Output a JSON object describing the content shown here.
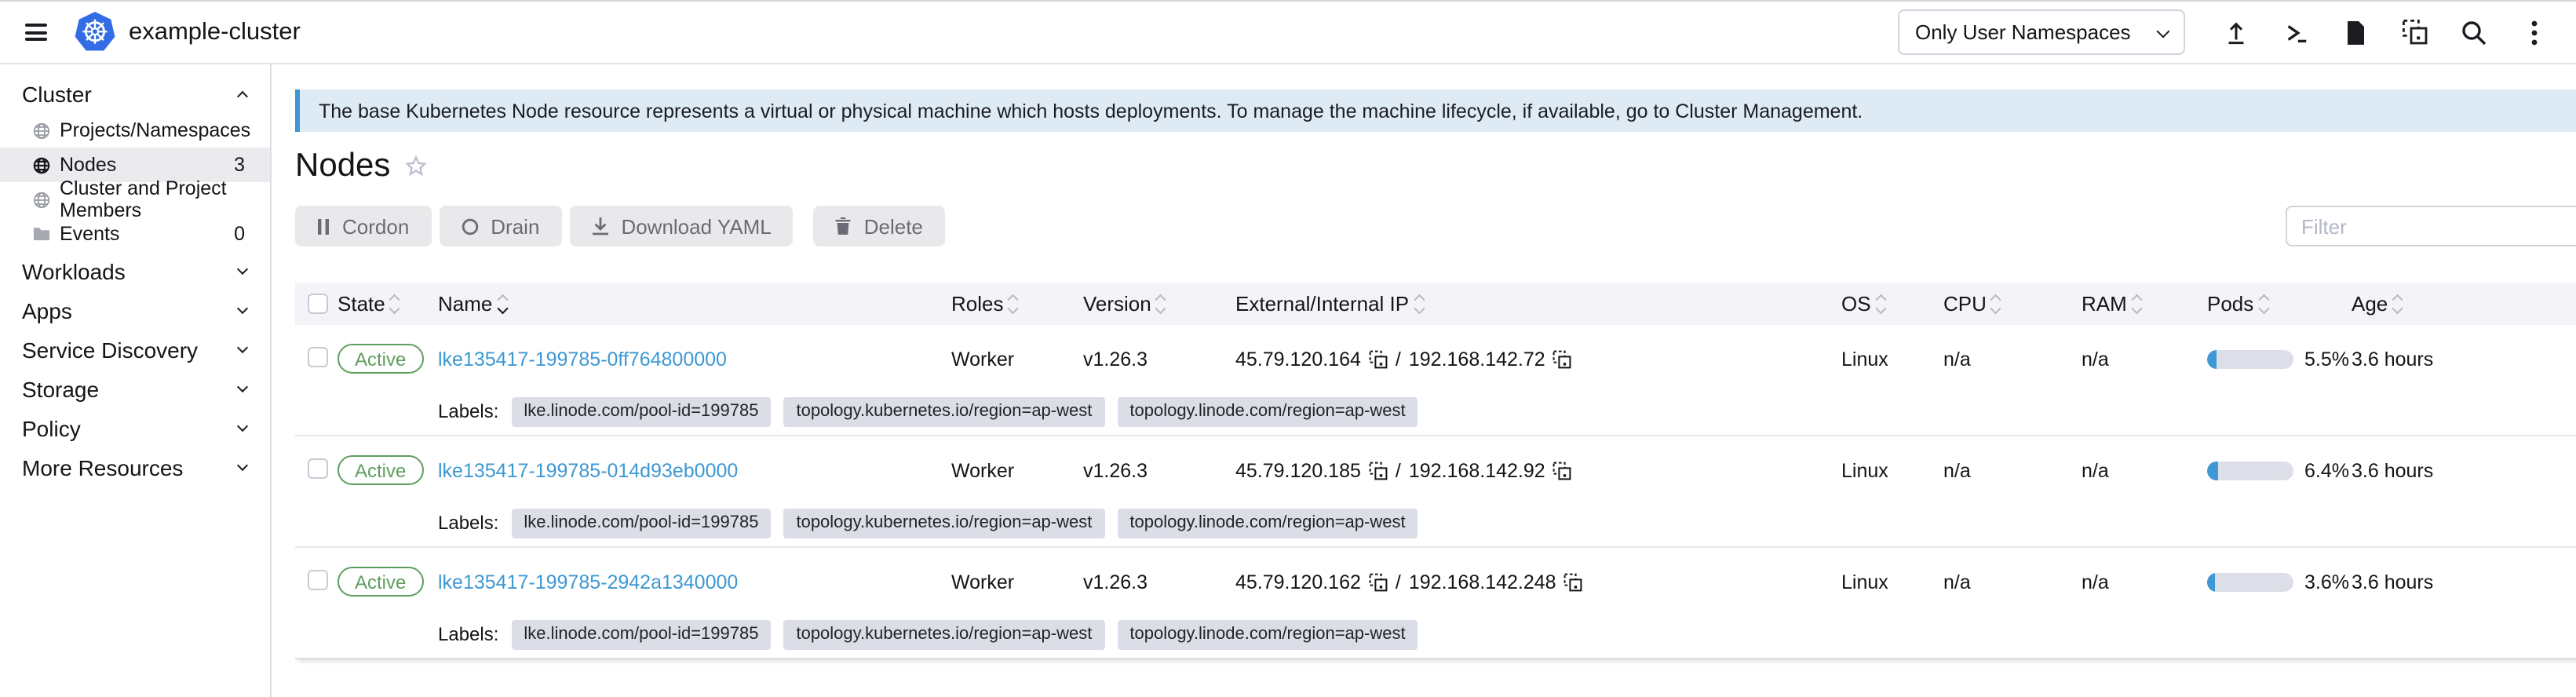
{
  "topbar": {
    "cluster_name": "example-cluster",
    "namespace_dropdown": {
      "value": "Only User Namespaces"
    },
    "icons": {
      "hamburger": "main-menu",
      "upload": "import-yaml",
      "shell": "kubectl-shell",
      "file": "download-kubeconfig",
      "copy": "copy-kubeconfig",
      "search": "resource-search",
      "kebab": "more-options"
    }
  },
  "sidebar": {
    "group_cluster": "Cluster",
    "items": [
      {
        "label": "Projects/Namespaces",
        "icon": "globe"
      },
      {
        "label": "Nodes",
        "icon": "globe",
        "count": "3",
        "selected": true
      },
      {
        "label": "Cluster and Project Members",
        "icon": "globe"
      },
      {
        "label": "Events",
        "icon": "folder",
        "count": "0"
      }
    ],
    "groups": [
      {
        "label": "Workloads"
      },
      {
        "label": "Apps"
      },
      {
        "label": "Service Discovery"
      },
      {
        "label": "Storage"
      },
      {
        "label": "Policy"
      },
      {
        "label": "More Resources"
      }
    ]
  },
  "banner": {
    "text": "The base Kubernetes Node resource represents a virtual or physical machine which hosts deployments. To manage the machine lifecycle, if available, go to Cluster Management."
  },
  "page": {
    "title": "Nodes"
  },
  "actions": {
    "cordon": "Cordon",
    "drain": "Drain",
    "download_yaml": "Download YAML",
    "delete": "Delete",
    "filter_placeholder": "Filter"
  },
  "table": {
    "columns": [
      "State",
      "Name",
      "Roles",
      "Version",
      "External/Internal IP",
      "OS",
      "CPU",
      "RAM",
      "Pods",
      "Age"
    ],
    "ip_separator": "/",
    "labels_title": "Labels:",
    "rows": [
      {
        "state": "Active",
        "name": "lke135417-199785-0ff764800000",
        "roles": "Worker",
        "version": "v1.26.3",
        "external_ip": "45.79.120.164",
        "internal_ip": "192.168.142.72",
        "os": "Linux",
        "cpu": "n/a",
        "ram": "n/a",
        "pods_percent": "5.5%",
        "age": "3.6 hours",
        "labels": [
          "lke.linode.com/pool-id=199785",
          "topology.kubernetes.io/region=ap-west",
          "topology.linode.com/region=ap-west"
        ]
      },
      {
        "state": "Active",
        "name": "lke135417-199785-014d93eb0000",
        "roles": "Worker",
        "version": "v1.26.3",
        "external_ip": "45.79.120.185",
        "internal_ip": "192.168.142.92",
        "os": "Linux",
        "cpu": "n/a",
        "ram": "n/a",
        "pods_percent": "6.4%",
        "age": "3.6 hours",
        "labels": [
          "lke.linode.com/pool-id=199785",
          "topology.kubernetes.io/region=ap-west",
          "topology.linode.com/region=ap-west"
        ]
      },
      {
        "state": "Active",
        "name": "lke135417-199785-2942a1340000",
        "roles": "Worker",
        "version": "v1.26.3",
        "external_ip": "45.79.120.162",
        "internal_ip": "192.168.142.248",
        "os": "Linux",
        "cpu": "n/a",
        "ram": "n/a",
        "pods_percent": "3.6%",
        "age": "3.6 hours",
        "labels": [
          "lke.linode.com/pool-id=199785",
          "topology.kubernetes.io/region=ap-west",
          "topology.linode.com/region=ap-west"
        ]
      }
    ]
  },
  "colors": {
    "accent_blue": "#3d98d3",
    "active_green": "#5d9e5d",
    "banner_bg": "#deebf5",
    "k8s_blue": "#326de6",
    "table_header_bg": "#f4f4f8"
  }
}
